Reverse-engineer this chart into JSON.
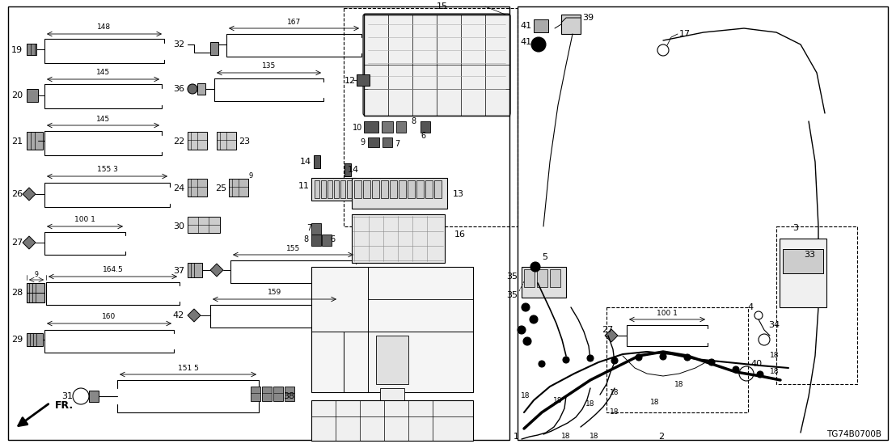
{
  "bg": "#ffffff",
  "lc": "#000000",
  "fw": 11.08,
  "fh": 5.54,
  "dpi": 100,
  "corner_text": "TG74B0700B"
}
